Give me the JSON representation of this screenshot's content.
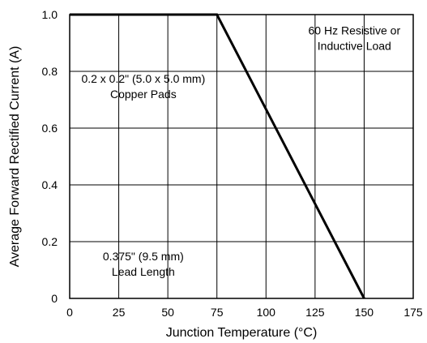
{
  "chart_data": {
    "type": "line",
    "title": "",
    "xlabel": "Junction Temperature (°C)",
    "ylabel": "Average Forward Rectified Current (A)",
    "xlim": [
      0,
      175
    ],
    "ylim": [
      0,
      1.0
    ],
    "x_ticks": [
      0,
      25,
      50,
      75,
      100,
      125,
      150,
      175
    ],
    "y_ticks": [
      0,
      0.2,
      0.4,
      0.6,
      0.8,
      1.0
    ],
    "x_tick_labels": [
      "0",
      "25",
      "50",
      "75",
      "100",
      "125",
      "150",
      "175"
    ],
    "y_tick_labels": [
      "0",
      "0.2",
      "0.4",
      "0.6",
      "0.8",
      "1.0"
    ],
    "grid": true,
    "series": [
      {
        "x": [
          0,
          75,
          150
        ],
        "y": [
          1.0,
          1.0,
          0
        ]
      }
    ],
    "annotations": [
      {
        "lines": [
          "60 Hz Resistive or",
          "Inductive Load"
        ],
        "x": 145,
        "y": 0.93
      },
      {
        "lines": [
          "0.2 x 0.2\" (5.0 x 5.0 mm)",
          "Copper Pads"
        ],
        "x": 37.5,
        "y": 0.76
      },
      {
        "lines": [
          "0.375\" (9.5 mm)",
          "Lead Length"
        ],
        "x": 37.5,
        "y": 0.135
      }
    ],
    "colors": {
      "line": "#000000",
      "grid": "#000000",
      "frame": "#000000"
    }
  }
}
